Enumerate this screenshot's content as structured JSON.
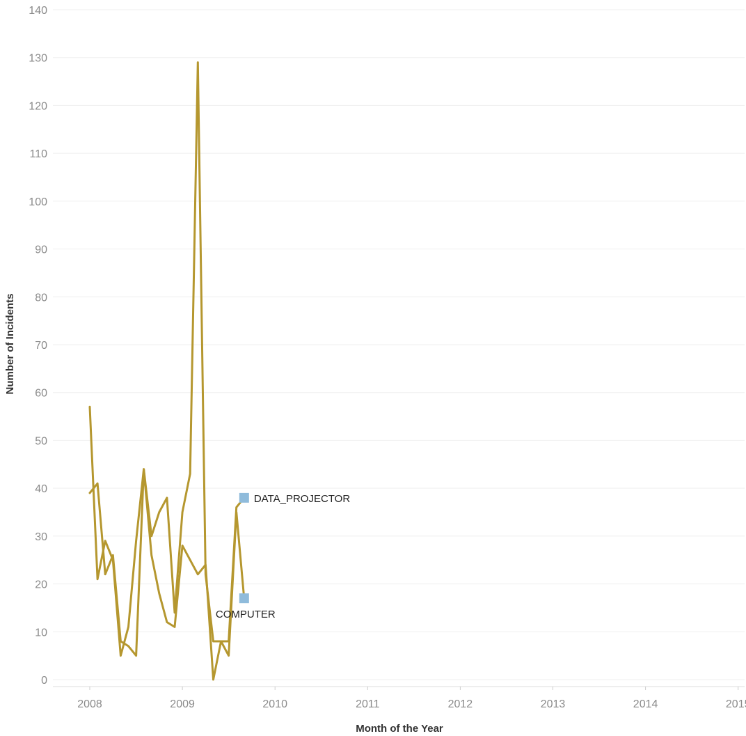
{
  "chart_data": {
    "type": "line",
    "title": "",
    "xlabel": "Month of the Year",
    "ylabel": "Number of  Incidents",
    "ylim": [
      0,
      140
    ],
    "xlim": [
      "2008-01",
      "2015-12"
    ],
    "x_ticks": [
      "2008",
      "2009",
      "2010",
      "2011",
      "2012",
      "2013",
      "2014",
      "2015"
    ],
    "y_ticks": [
      0,
      10,
      20,
      30,
      40,
      50,
      60,
      70,
      80,
      90,
      100,
      110,
      120,
      130,
      140
    ],
    "grid": true,
    "line_color": "#b5972f",
    "end_marker_color": "#8fbbdb",
    "series": [
      {
        "name": "DATA_PROJECTOR",
        "x": [
          "2008-01",
          "2008-02",
          "2008-03",
          "2008-04",
          "2008-05",
          "2008-06",
          "2008-07",
          "2008-08",
          "2008-09",
          "2008-10",
          "2008-11",
          "2008-12",
          "2009-01",
          "2009-02",
          "2009-03",
          "2009-04",
          "2009-05",
          "2009-06",
          "2009-07",
          "2009-08",
          "2009-09"
        ],
        "values": [
          57,
          21,
          29,
          25,
          5,
          11,
          29,
          44,
          30,
          35,
          38,
          14,
          35,
          43,
          129,
          22,
          8,
          8,
          8,
          36,
          38
        ]
      },
      {
        "name": "COMPUTER",
        "x": [
          "2008-01",
          "2008-02",
          "2008-03",
          "2008-04",
          "2008-05",
          "2008-06",
          "2008-07",
          "2008-08",
          "2008-09",
          "2008-10",
          "2008-11",
          "2008-12",
          "2009-01",
          "2009-02",
          "2009-03",
          "2009-04",
          "2009-05",
          "2009-06",
          "2009-07",
          "2009-08",
          "2009-09"
        ],
        "values": [
          39,
          41,
          22,
          26,
          8,
          7,
          5,
          44,
          26,
          18,
          12,
          11,
          28,
          25,
          22,
          24,
          0,
          8,
          5,
          35,
          17
        ]
      }
    ]
  }
}
